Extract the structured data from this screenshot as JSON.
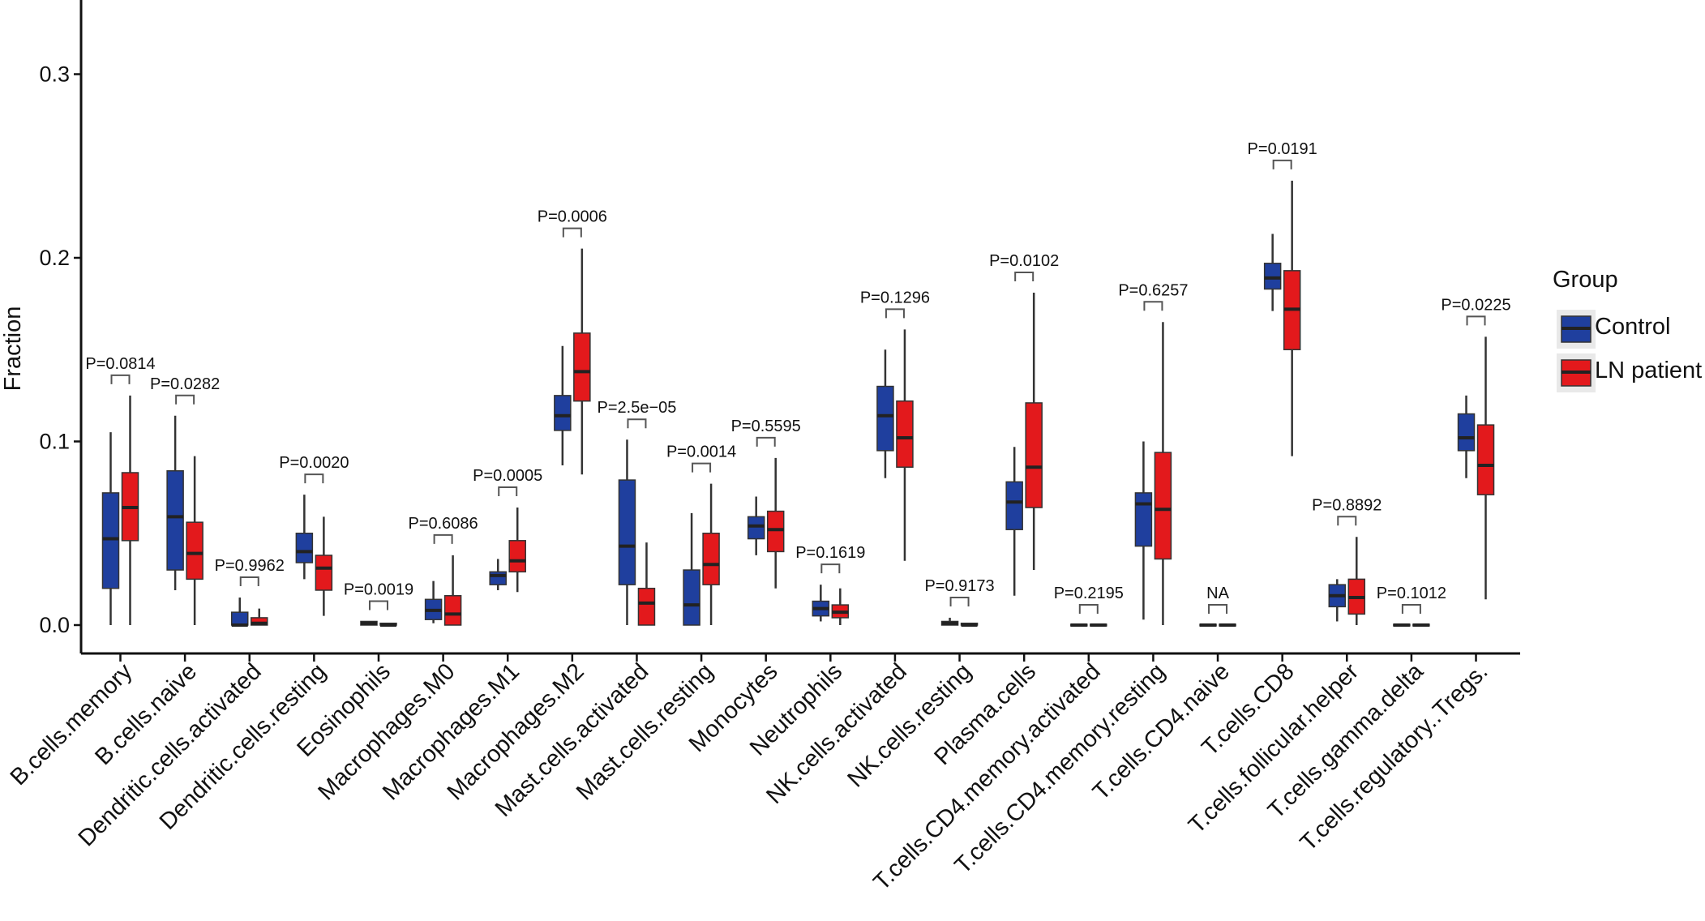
{
  "chart_data": {
    "type": "box",
    "ylabel": "Fraction",
    "ylim": [
      -0.017,
      0.34
    ],
    "yticks": [
      0.0,
      0.1,
      0.2,
      0.3
    ],
    "ytick_labels": [
      "0.0",
      "0.1",
      "0.2",
      "0.3"
    ],
    "legend": {
      "title": "Group",
      "placement": "right",
      "entries": [
        {
          "name": "Control",
          "color": "#1f3f9e"
        },
        {
          "name": "LN patient",
          "color": "#e3191c"
        }
      ]
    },
    "categories": [
      "B.cells.memory",
      "B.cells.naive",
      "Dendritic.cells.activated",
      "Dendritic.cells.resting",
      "Eosinophils",
      "Macrophages.M0",
      "Macrophages.M1",
      "Macrophages.M2",
      "Mast.cells.activated",
      "Mast.cells.resting",
      "Monocytes",
      "Neutrophils",
      "NK.cells.activated",
      "NK.cells.resting",
      "Plasma.cells",
      "T.cells.CD4.memory.activated",
      "T.cells.CD4.memory.resting",
      "T.cells.CD4.naive",
      "T.cells.CD8",
      "T.cells.follicular.helper",
      "T.cells.gamma.delta",
      "T.cells.regulatory..Tregs."
    ],
    "pvalues": [
      "P=0.0814",
      "P=0.0282",
      "P=0.9962",
      "P=0.0020",
      "P=0.0019",
      "P=0.6086",
      "P=0.0005",
      "P=0.0006",
      "P=2.5e−05",
      "P=0.0014",
      "P=0.5595",
      "P=0.1619",
      "P=0.1296",
      "P=0.9173",
      "P=0.0102",
      "P=0.2195",
      "P=0.6257",
      "NA",
      "P=0.0191",
      "P=0.8892",
      "P=0.1012",
      "P=0.0225"
    ],
    "series": [
      {
        "name": "Control",
        "boxes": [
          {
            "min": 0.0,
            "q1": 0.02,
            "median": 0.047,
            "q3": 0.072,
            "max": 0.105
          },
          {
            "min": 0.019,
            "q1": 0.03,
            "median": 0.059,
            "q3": 0.084,
            "max": 0.114
          },
          {
            "min": 0.0,
            "q1": 0.0,
            "median": 0.0,
            "q3": 0.007,
            "max": 0.015
          },
          {
            "min": 0.025,
            "q1": 0.034,
            "median": 0.04,
            "q3": 0.05,
            "max": 0.071
          },
          {
            "min": 0.0,
            "q1": 0.0,
            "median": 0.001,
            "q3": 0.002,
            "max": 0.002
          },
          {
            "min": 0.001,
            "q1": 0.003,
            "median": 0.008,
            "q3": 0.014,
            "max": 0.024
          },
          {
            "min": 0.019,
            "q1": 0.022,
            "median": 0.027,
            "q3": 0.029,
            "max": 0.036
          },
          {
            "min": 0.087,
            "q1": 0.106,
            "median": 0.114,
            "q3": 0.125,
            "max": 0.152
          },
          {
            "min": 0.0,
            "q1": 0.022,
            "median": 0.043,
            "q3": 0.079,
            "max": 0.101
          },
          {
            "min": 0.0,
            "q1": 0.0,
            "median": 0.011,
            "q3": 0.03,
            "max": 0.061
          },
          {
            "min": 0.038,
            "q1": 0.047,
            "median": 0.054,
            "q3": 0.059,
            "max": 0.07
          },
          {
            "min": 0.002,
            "q1": 0.005,
            "median": 0.009,
            "q3": 0.013,
            "max": 0.022
          },
          {
            "min": 0.08,
            "q1": 0.095,
            "median": 0.114,
            "q3": 0.13,
            "max": 0.15
          },
          {
            "min": 0.0,
            "q1": 0.0,
            "median": 0.001,
            "q3": 0.002,
            "max": 0.004
          },
          {
            "min": 0.016,
            "q1": 0.052,
            "median": 0.067,
            "q3": 0.078,
            "max": 0.097
          },
          {
            "min": 0.0,
            "q1": 0.0,
            "median": 0.0,
            "q3": 0.0,
            "max": 0.0
          },
          {
            "min": 0.003,
            "q1": 0.043,
            "median": 0.066,
            "q3": 0.072,
            "max": 0.1
          },
          {
            "min": 0.0,
            "q1": 0.0,
            "median": 0.0,
            "q3": 0.0,
            "max": 0.0
          },
          {
            "min": 0.171,
            "q1": 0.183,
            "median": 0.189,
            "q3": 0.197,
            "max": 0.213
          },
          {
            "min": 0.002,
            "q1": 0.01,
            "median": 0.016,
            "q3": 0.022,
            "max": 0.025
          },
          {
            "min": 0.0,
            "q1": 0.0,
            "median": 0.0,
            "q3": 0.0,
            "max": 0.0
          },
          {
            "min": 0.08,
            "q1": 0.095,
            "median": 0.102,
            "q3": 0.115,
            "max": 0.125
          }
        ]
      },
      {
        "name": "LN patient",
        "boxes": [
          {
            "min": 0.0,
            "q1": 0.046,
            "median": 0.064,
            "q3": 0.083,
            "max": 0.125
          },
          {
            "min": 0.0,
            "q1": 0.025,
            "median": 0.039,
            "q3": 0.056,
            "max": 0.092
          },
          {
            "min": 0.0,
            "q1": 0.0,
            "median": 0.001,
            "q3": 0.004,
            "max": 0.009
          },
          {
            "min": 0.005,
            "q1": 0.019,
            "median": 0.031,
            "q3": 0.038,
            "max": 0.059
          },
          {
            "min": 0.0,
            "q1": 0.0,
            "median": 0.0,
            "q3": 0.001,
            "max": 0.001
          },
          {
            "min": 0.0,
            "q1": 0.0,
            "median": 0.006,
            "q3": 0.016,
            "max": 0.038
          },
          {
            "min": 0.018,
            "q1": 0.029,
            "median": 0.035,
            "q3": 0.046,
            "max": 0.064
          },
          {
            "min": 0.082,
            "q1": 0.122,
            "median": 0.138,
            "q3": 0.159,
            "max": 0.205
          },
          {
            "min": 0.0,
            "q1": 0.0,
            "median": 0.012,
            "q3": 0.02,
            "max": 0.045
          },
          {
            "min": 0.0,
            "q1": 0.022,
            "median": 0.033,
            "q3": 0.05,
            "max": 0.077
          },
          {
            "min": 0.02,
            "q1": 0.04,
            "median": 0.052,
            "q3": 0.062,
            "max": 0.091
          },
          {
            "min": 0.0,
            "q1": 0.004,
            "median": 0.007,
            "q3": 0.011,
            "max": 0.02
          },
          {
            "min": 0.035,
            "q1": 0.086,
            "median": 0.102,
            "q3": 0.122,
            "max": 0.161
          },
          {
            "min": 0.0,
            "q1": 0.0,
            "median": 0.0,
            "q3": 0.001,
            "max": 0.001
          },
          {
            "min": 0.03,
            "q1": 0.064,
            "median": 0.086,
            "q3": 0.121,
            "max": 0.181
          },
          {
            "min": 0.0,
            "q1": 0.0,
            "median": 0.0,
            "q3": 0.0,
            "max": 0.0
          },
          {
            "min": 0.0,
            "q1": 0.036,
            "median": 0.063,
            "q3": 0.094,
            "max": 0.165
          },
          {
            "min": 0.0,
            "q1": 0.0,
            "median": 0.0,
            "q3": 0.0,
            "max": 0.0
          },
          {
            "min": 0.092,
            "q1": 0.15,
            "median": 0.172,
            "q3": 0.193,
            "max": 0.242
          },
          {
            "min": 0.0,
            "q1": 0.006,
            "median": 0.015,
            "q3": 0.025,
            "max": 0.048
          },
          {
            "min": 0.0,
            "q1": 0.0,
            "median": 0.0,
            "q3": 0.0,
            "max": 0.0
          },
          {
            "min": 0.014,
            "q1": 0.071,
            "median": 0.087,
            "q3": 0.109,
            "max": 0.157
          }
        ]
      }
    ]
  }
}
